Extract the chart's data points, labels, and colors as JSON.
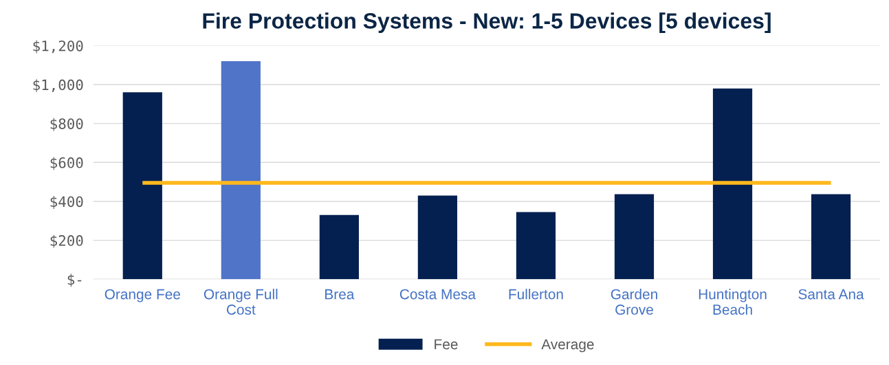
{
  "chart_data": {
    "type": "bar",
    "title": "Fire Protection Systems - New: 1-5 Devices [5 devices]",
    "categories": [
      "Orange Fee",
      "Orange Full Cost",
      "Brea",
      "Costa Mesa",
      "Fullerton",
      "Garden Grove",
      "Huntington Beach",
      "Santa Ana"
    ],
    "series": [
      {
        "name": "Fee",
        "color": "#042050",
        "colors": [
          "#042050",
          "#4f74c8",
          "#042050",
          "#042050",
          "#042050",
          "#042050",
          "#042050",
          "#042050"
        ],
        "values": [
          960,
          1120,
          330,
          430,
          345,
          437,
          980,
          437
        ]
      },
      {
        "name": "Average",
        "type": "line",
        "color": "#ffb81c",
        "values": [
          495,
          495,
          495,
          495,
          495,
          495,
          495,
          495
        ]
      }
    ],
    "ylim": [
      0,
      1200
    ],
    "yticks": [
      {
        "value": 0,
        "label": "$-"
      },
      {
        "value": 200,
        "label": "$200"
      },
      {
        "value": 400,
        "label": "$400"
      },
      {
        "value": 600,
        "label": "$600"
      },
      {
        "value": 800,
        "label": "$800"
      },
      {
        "value": 1000,
        "label": "$1,000"
      },
      {
        "value": 1200,
        "label": "$1,200"
      }
    ],
    "grid": "y",
    "legend": "bottom"
  }
}
